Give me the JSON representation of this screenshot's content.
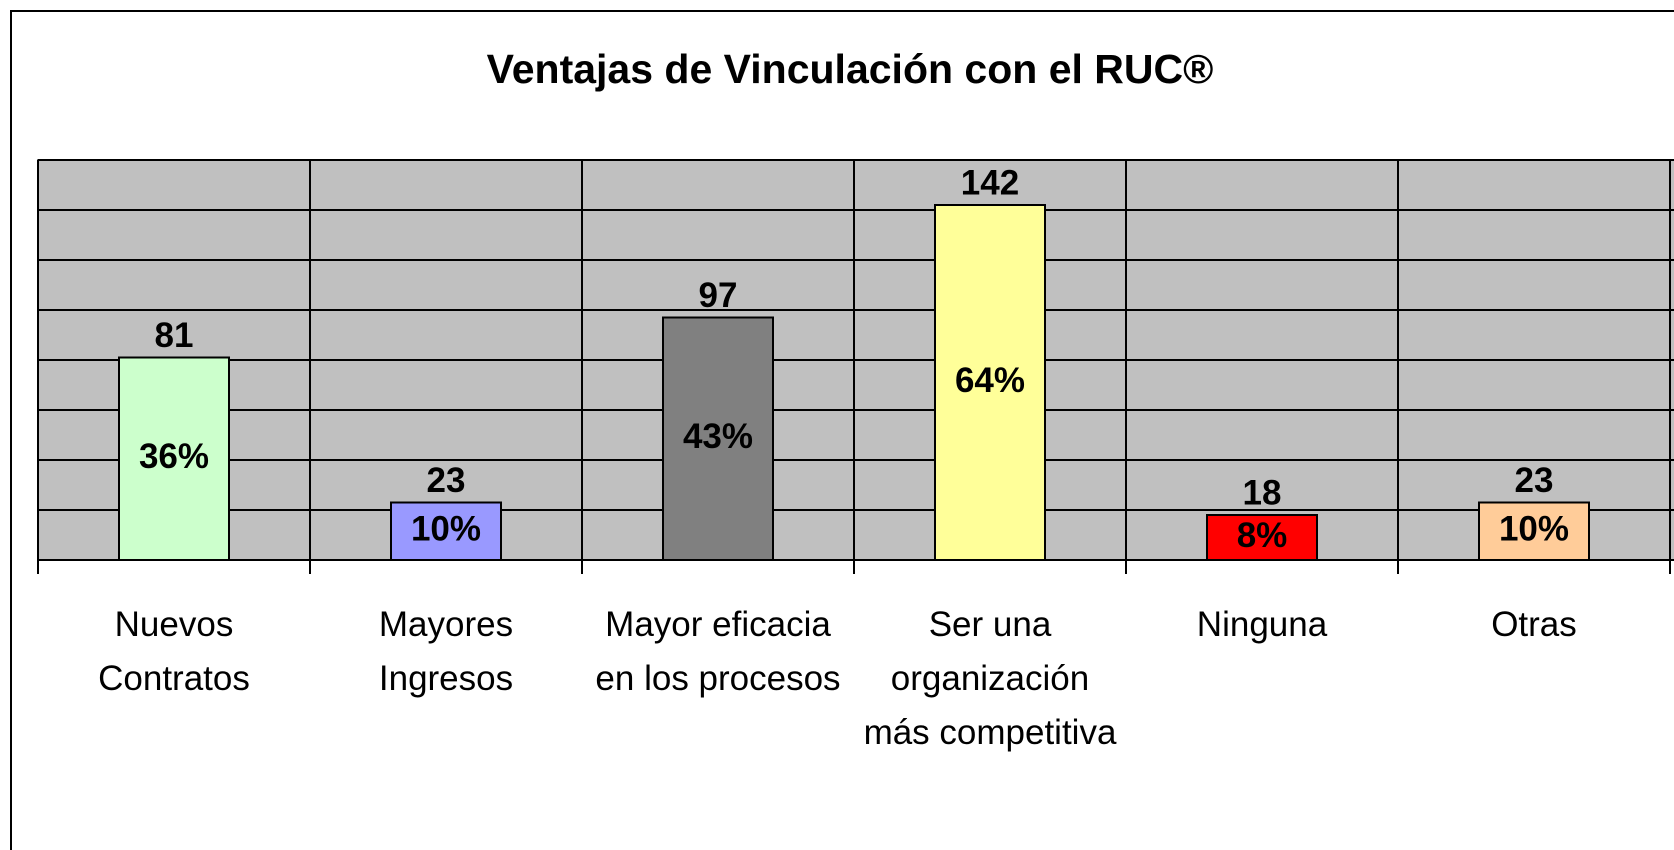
{
  "chart_data": {
    "type": "bar",
    "title": "Ventajas de Vinculación con el RUC®",
    "categories": [
      "Nuevos Contratos",
      "Mayores Ingresos",
      "Mayor eficacia en los procesos",
      "Ser una organización más competitiva",
      "Ninguna",
      "Otras"
    ],
    "values": [
      81,
      23,
      97,
      142,
      18,
      23
    ],
    "percent_labels": [
      "36%",
      "10%",
      "43%",
      "64%",
      "8%",
      "10%"
    ],
    "colors": [
      "#ccffcc",
      "#9999ff",
      "#808080",
      "#ffff99",
      "#ff0000",
      "#ffcc99"
    ],
    "ylim": [
      0,
      160
    ],
    "yticks": [
      0,
      20,
      40,
      60,
      80,
      100,
      120,
      140,
      160
    ],
    "grid": true
  }
}
